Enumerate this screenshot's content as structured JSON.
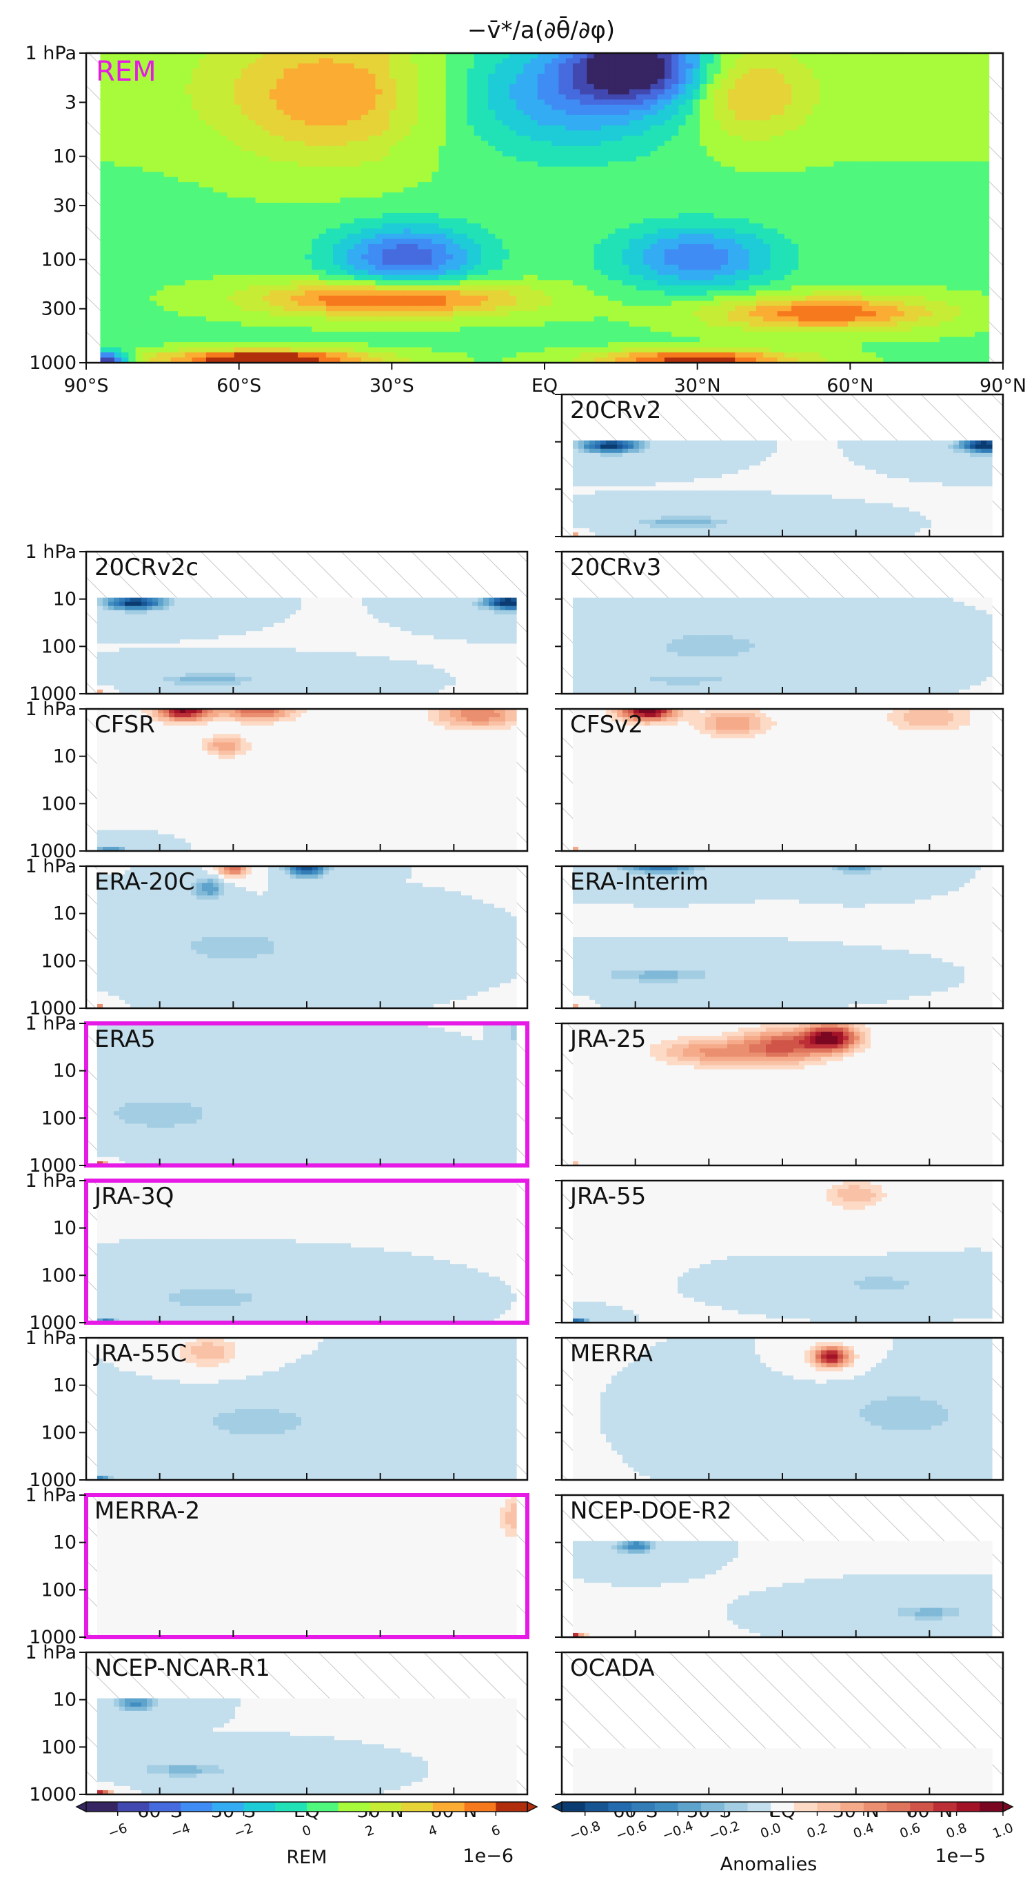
{
  "chart_data": {
    "type": "heatmap",
    "title": "−v̄*/a(∂θ̄/∂φ)",
    "x_ticks": [
      "90°S",
      "60°S",
      "30°S",
      "EQ",
      "30°N",
      "60°N",
      "90°N"
    ],
    "x_ticks_bottom": [
      "60°S",
      "30°S",
      "EQ",
      "30°N",
      "60°N"
    ],
    "y_ticks_top": [
      "1 hPa",
      "3",
      "10",
      "30",
      "100",
      "300",
      "1000"
    ],
    "y_ticks_small": [
      "1 hPa",
      "10",
      "100",
      "1000"
    ],
    "xlim": [
      -90,
      90
    ],
    "ylim_hPa": [
      1000,
      1
    ],
    "y_scale": "log",
    "highlight_color": "#e619e6",
    "main_panel": {
      "label": "REM",
      "label_color": "#e619e6",
      "label_code": "rem",
      "features": [
        {
          "lat": 18,
          "p": 1.3,
          "value": -7.0,
          "wlat": 9,
          "wlogp": 0.25
        },
        {
          "lat": 5,
          "p": 2.5,
          "value": -4.0,
          "wlat": 16,
          "wlogp": 0.4
        },
        {
          "lat": -42,
          "p": 2.5,
          "value": 3.5,
          "wlat": 15,
          "wlogp": 0.45
        },
        {
          "lat": 40,
          "p": 2.5,
          "value": 3.0,
          "wlat": 8,
          "wlogp": 0.3
        },
        {
          "lat": -27,
          "p": 95,
          "value": -5.5,
          "wlat": 10,
          "wlogp": 0.22
        },
        {
          "lat": 30,
          "p": 95,
          "value": -4.5,
          "wlat": 11,
          "wlogp": 0.22
        },
        {
          "lat": -30,
          "p": 240,
          "value": 6.0,
          "wlat": 18,
          "wlogp": 0.12
        },
        {
          "lat": 55,
          "p": 330,
          "value": 5.0,
          "wlat": 16,
          "wlogp": 0.12
        },
        {
          "lat": -55,
          "p": 920,
          "value": 7.0,
          "wlat": 15,
          "wlogp": 0.06
        },
        {
          "lat": 30,
          "p": 920,
          "value": 6.0,
          "wlat": 14,
          "wlogp": 0.06
        },
        {
          "lat": -86,
          "p": 950,
          "value": -7.0,
          "wlat": 3,
          "wlogp": 0.06
        }
      ]
    },
    "panels": [
      {
        "label": "20CRv2",
        "top_hPa": 10,
        "highlight": false,
        "features": [
          {
            "lat": -70,
            "p": 12,
            "value": -0.9,
            "wlat": 8,
            "wlogp": 0.1
          },
          {
            "lat": 83,
            "p": 12,
            "value": -1.0,
            "wlat": 7,
            "wlogp": 0.1
          },
          {
            "lat": -40,
            "p": 500,
            "value": -0.3,
            "wlat": 12,
            "wlogp": 0.08
          },
          {
            "lat": -87,
            "p": 950,
            "value": 0.9,
            "wlat": 2,
            "wlogp": 0.05
          }
        ]
      },
      {
        "label": "20CRv2c",
        "top_hPa": 10,
        "highlight": false,
        "features": [
          {
            "lat": -70,
            "p": 12,
            "value": -0.9,
            "wlat": 8,
            "wlogp": 0.1
          },
          {
            "lat": 83,
            "p": 12,
            "value": -1.0,
            "wlat": 7,
            "wlogp": 0.1
          },
          {
            "lat": -40,
            "p": 500,
            "value": -0.3,
            "wlat": 12,
            "wlogp": 0.08
          },
          {
            "lat": -87,
            "p": 950,
            "value": 0.9,
            "wlat": 2,
            "wlogp": 0.05
          }
        ]
      },
      {
        "label": "20CRv3",
        "top_hPa": 10,
        "highlight": false,
        "features": [
          {
            "lat": -30,
            "p": 100,
            "value": -0.2,
            "wlat": 15,
            "wlogp": 0.2
          },
          {
            "lat": -40,
            "p": 500,
            "value": -0.2,
            "wlat": 12,
            "wlogp": 0.08
          }
        ]
      },
      {
        "label": "CFSR",
        "top_hPa": 1,
        "highlight": false,
        "features": [
          {
            "lat": -50,
            "p": 1.1,
            "value": 0.9,
            "wlat": 8,
            "wlogp": 0.15
          },
          {
            "lat": -20,
            "p": 1.1,
            "value": 0.6,
            "wlat": 10,
            "wlogp": 0.15
          },
          {
            "lat": 70,
            "p": 1.3,
            "value": 0.5,
            "wlat": 12,
            "wlogp": 0.2
          },
          {
            "lat": -33,
            "p": 6,
            "value": 0.4,
            "wlat": 6,
            "wlogp": 0.15
          },
          {
            "lat": -80,
            "p": 900,
            "value": -0.4,
            "wlat": 4,
            "wlogp": 0.05
          }
        ]
      },
      {
        "label": "CFSv2",
        "top_hPa": 1,
        "highlight": false,
        "features": [
          {
            "lat": -55,
            "p": 1.1,
            "value": 1.0,
            "wlat": 8,
            "wlogp": 0.15
          },
          {
            "lat": -20,
            "p": 2,
            "value": 0.4,
            "wlat": 10,
            "wlogp": 0.2
          },
          {
            "lat": 60,
            "p": 1.5,
            "value": 0.3,
            "wlat": 12,
            "wlogp": 0.2
          },
          {
            "lat": -87,
            "p": 950,
            "value": 0.9,
            "wlat": 2,
            "wlogp": 0.05
          }
        ]
      },
      {
        "label": "ERA-20C",
        "top_hPa": 1,
        "highlight": false,
        "features": [
          {
            "lat": -30,
            "p": 1.1,
            "value": 0.6,
            "wlat": 4,
            "wlogp": 0.12
          },
          {
            "lat": 0,
            "p": 1.1,
            "value": -0.8,
            "wlat": 5,
            "wlogp": 0.12
          },
          {
            "lat": -40,
            "p": 3,
            "value": -0.4,
            "wlat": 4,
            "wlogp": 0.15
          },
          {
            "lat": -30,
            "p": 50,
            "value": -0.2,
            "wlat": 15,
            "wlogp": 0.2
          },
          {
            "lat": -86,
            "p": 950,
            "value": 0.7,
            "wlat": 2,
            "wlogp": 0.05
          }
        ]
      },
      {
        "label": "ERA-Interim",
        "top_hPa": 1,
        "highlight": false,
        "features": [
          {
            "lat": -50,
            "p": 1.0,
            "value": -0.6,
            "wlat": 10,
            "wlogp": 0.1
          },
          {
            "lat": 30,
            "p": 1.0,
            "value": -0.4,
            "wlat": 6,
            "wlogp": 0.1
          },
          {
            "lat": -50,
            "p": 200,
            "value": -0.25,
            "wlat": 15,
            "wlogp": 0.1
          },
          {
            "lat": -87,
            "p": 950,
            "value": 0.8,
            "wlat": 2,
            "wlogp": 0.05
          }
        ]
      },
      {
        "label": "ERA5",
        "top_hPa": 1,
        "highlight": true,
        "features": [
          {
            "lat": 88,
            "p": 1.5,
            "value": -0.8,
            "wlat": 2,
            "wlogp": 0.2
          },
          {
            "lat": -86,
            "p": 950,
            "value": 0.8,
            "wlat": 3,
            "wlogp": 0.05
          },
          {
            "lat": -60,
            "p": 80,
            "value": -0.15,
            "wlat": 20,
            "wlogp": 0.3
          }
        ]
      },
      {
        "label": "JRA-25",
        "top_hPa": 1,
        "highlight": false,
        "features": [
          {
            "lat": 20,
            "p": 2,
            "value": 0.9,
            "wlat": 8,
            "wlogp": 0.2
          },
          {
            "lat": 0,
            "p": 3,
            "value": 0.6,
            "wlat": 12,
            "wlogp": 0.25
          },
          {
            "lat": -30,
            "p": 4,
            "value": 0.4,
            "wlat": 15,
            "wlogp": 0.2
          },
          {
            "lat": -87,
            "p": 950,
            "value": 0.7,
            "wlat": 2,
            "wlogp": 0.05
          }
        ]
      },
      {
        "label": "JRA-3Q",
        "top_hPa": 1,
        "highlight": true,
        "features": [
          {
            "lat": -82,
            "p": 950,
            "value": -0.6,
            "wlat": 3,
            "wlogp": 0.05
          },
          {
            "lat": -40,
            "p": 300,
            "value": -0.2,
            "wlat": 15,
            "wlogp": 0.15
          }
        ]
      },
      {
        "label": "JRA-55",
        "top_hPa": 1,
        "highlight": false,
        "features": [
          {
            "lat": 30,
            "p": 2,
            "value": 0.3,
            "wlat": 8,
            "wlogp": 0.2
          },
          {
            "lat": -84,
            "p": 950,
            "value": -0.7,
            "wlat": 3,
            "wlogp": 0.05
          },
          {
            "lat": 40,
            "p": 150,
            "value": -0.2,
            "wlat": 10,
            "wlogp": 0.1
          }
        ]
      },
      {
        "label": "JRA-55C",
        "top_hPa": 1,
        "highlight": false,
        "features": [
          {
            "lat": -40,
            "p": 2,
            "value": 0.3,
            "wlat": 8,
            "wlogp": 0.2
          },
          {
            "lat": -84,
            "p": 950,
            "value": -0.5,
            "wlat": 3,
            "wlogp": 0.05
          },
          {
            "lat": -20,
            "p": 60,
            "value": -0.15,
            "wlat": 20,
            "wlogp": 0.3
          }
        ]
      },
      {
        "label": "MERRA",
        "top_hPa": 1,
        "highlight": false,
        "features": [
          {
            "lat": 20,
            "p": 2.5,
            "value": 0.9,
            "wlat": 5,
            "wlogp": 0.15
          },
          {
            "lat": 50,
            "p": 40,
            "value": -0.2,
            "wlat": 15,
            "wlogp": 0.3
          }
        ]
      },
      {
        "label": "MERRA-2",
        "top_hPa": 1,
        "highlight": true,
        "features": [
          {
            "lat": 85,
            "p": 3,
            "value": 0.3,
            "wlat": 4,
            "wlogp": 0.3
          }
        ]
      },
      {
        "label": "NCEP-DOE-R2",
        "top_hPa": 10,
        "highlight": false,
        "features": [
          {
            "lat": -60,
            "p": 12,
            "value": -0.5,
            "wlat": 5,
            "wlogp": 0.1
          },
          {
            "lat": -86,
            "p": 950,
            "value": 1.0,
            "wlat": 3,
            "wlogp": 0.05
          },
          {
            "lat": 60,
            "p": 300,
            "value": -0.25,
            "wlat": 10,
            "wlogp": 0.1
          }
        ]
      },
      {
        "label": "NCEP-NCAR-R1",
        "top_hPa": 10,
        "highlight": false,
        "features": [
          {
            "lat": -70,
            "p": 12,
            "value": -0.5,
            "wlat": 5,
            "wlogp": 0.1
          },
          {
            "lat": -84,
            "p": 950,
            "value": 0.8,
            "wlat": 3,
            "wlogp": 0.05
          },
          {
            "lat": -50,
            "p": 300,
            "value": -0.25,
            "wlat": 12,
            "wlogp": 0.1
          }
        ]
      },
      {
        "label": "OCADA",
        "top_hPa": 100,
        "highlight": false,
        "features": []
      }
    ],
    "colorbar_rem": {
      "label": "REM",
      "scale_text": "1e−6",
      "ticks": [
        "−6",
        "−4",
        "−2",
        "0",
        "2",
        "4",
        "6"
      ],
      "range": [
        -7,
        7
      ]
    },
    "colorbar_anom": {
      "label": "Anomalies",
      "scale_text": "1e−5",
      "ticks": [
        "−0.8",
        "−0.6",
        "−0.4",
        "−0.2",
        "0.0",
        "0.2",
        "0.4",
        "0.6",
        "0.8",
        "1.0"
      ],
      "range": [
        -0.9,
        1.0
      ]
    }
  }
}
